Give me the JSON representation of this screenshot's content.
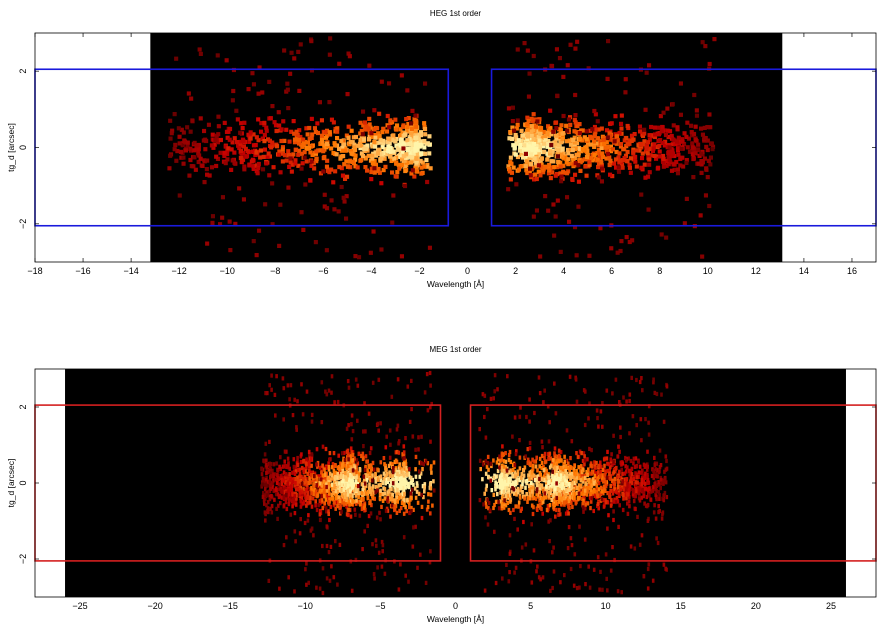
{
  "chart_data": [
    {
      "type": "heatmap",
      "title": "HEG 1st order",
      "xlabel": "Wavelength [Å]",
      "ylabel": "tg_d [arcsec]",
      "xlim": [
        -18,
        17
      ],
      "ylim": [
        -3,
        3
      ],
      "x_ticks": [
        -18,
        -16,
        -14,
        -12,
        -10,
        -8,
        -6,
        -4,
        -2,
        0,
        2,
        4,
        6,
        8,
        10,
        12,
        14,
        16
      ],
      "y_ticks": [
        -2,
        0,
        2
      ],
      "image_extent_x": [
        -13.2,
        13.1
      ],
      "regions": [
        {
          "side": "minus",
          "x": [
            -0.8,
            -18
          ],
          "y": [
            -2.05,
            2.05
          ]
        },
        {
          "side": "plus",
          "x": [
            1.0,
            17
          ],
          "y": [
            -2.05,
            2.05
          ]
        }
      ],
      "region_color": "#1a1adc",
      "source_emission": [
        {
          "x_center": -2.2,
          "x_extent": [
            -12.5,
            -1.6
          ],
          "y_sigma": 0.45
        },
        {
          "x_center": 2.4,
          "x_extent": [
            1.6,
            10.2
          ],
          "y_sigma": 0.45
        }
      ]
    },
    {
      "type": "heatmap",
      "title": "MEG 1st order",
      "xlabel": "Wavelength [Å]",
      "ylabel": "tg_d [arcsec]",
      "xlim": [
        -28,
        28
      ],
      "ylim": [
        -3,
        3
      ],
      "x_ticks": [
        -25,
        -20,
        -15,
        -10,
        -5,
        0,
        5,
        10,
        15,
        20,
        25
      ],
      "y_ticks": [
        -2,
        0,
        2
      ],
      "image_extent_x": [
        -26.0,
        26.0
      ],
      "regions": [
        {
          "side": "minus",
          "x": [
            -1.0,
            -28
          ],
          "y": [
            -2.05,
            2.05
          ]
        },
        {
          "side": "plus",
          "x": [
            1.0,
            28
          ],
          "y": [
            -2.05,
            2.05
          ]
        }
      ],
      "region_color": "#d42020",
      "source_emission": [
        {
          "x_center": -3.5,
          "x_extent": [
            -13.0,
            -1.5
          ],
          "y_sigma": 0.45
        },
        {
          "x_center": -7.0,
          "x_extent": [
            -13.0,
            -1.5
          ],
          "y_sigma": 0.45
        },
        {
          "x_center": 3.0,
          "x_extent": [
            1.5,
            14.0
          ],
          "y_sigma": 0.45
        },
        {
          "x_center": 6.5,
          "x_extent": [
            1.5,
            14.0
          ],
          "y_sigma": 0.45
        }
      ]
    }
  ]
}
